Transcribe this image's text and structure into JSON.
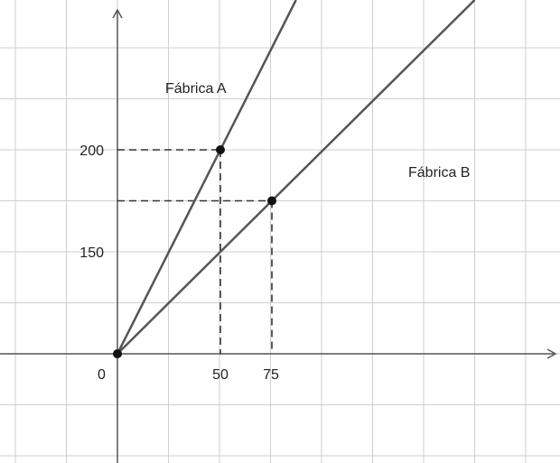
{
  "chart_data": {
    "type": "line",
    "x_ticks": [
      "0",
      "50",
      "75"
    ],
    "y_ticks": [
      "200",
      "150"
    ],
    "series": [
      {
        "name": "Fábrica A",
        "x": [
          0,
          50
        ],
        "y": [
          0,
          200
        ]
      },
      {
        "name": "Fábrica B",
        "x": [
          0,
          75
        ],
        "y": [
          0,
          150
        ]
      }
    ],
    "points": [
      {
        "x": 50,
        "y": 200
      },
      {
        "x": 75,
        "y": 150
      },
      {
        "x": 0,
        "y": 0
      }
    ],
    "xlim": [
      -57,
      217
    ],
    "ylim": [
      -235,
      385
    ],
    "grid": true,
    "line_color": "#555555",
    "grid_color": "#cfcfcf"
  }
}
